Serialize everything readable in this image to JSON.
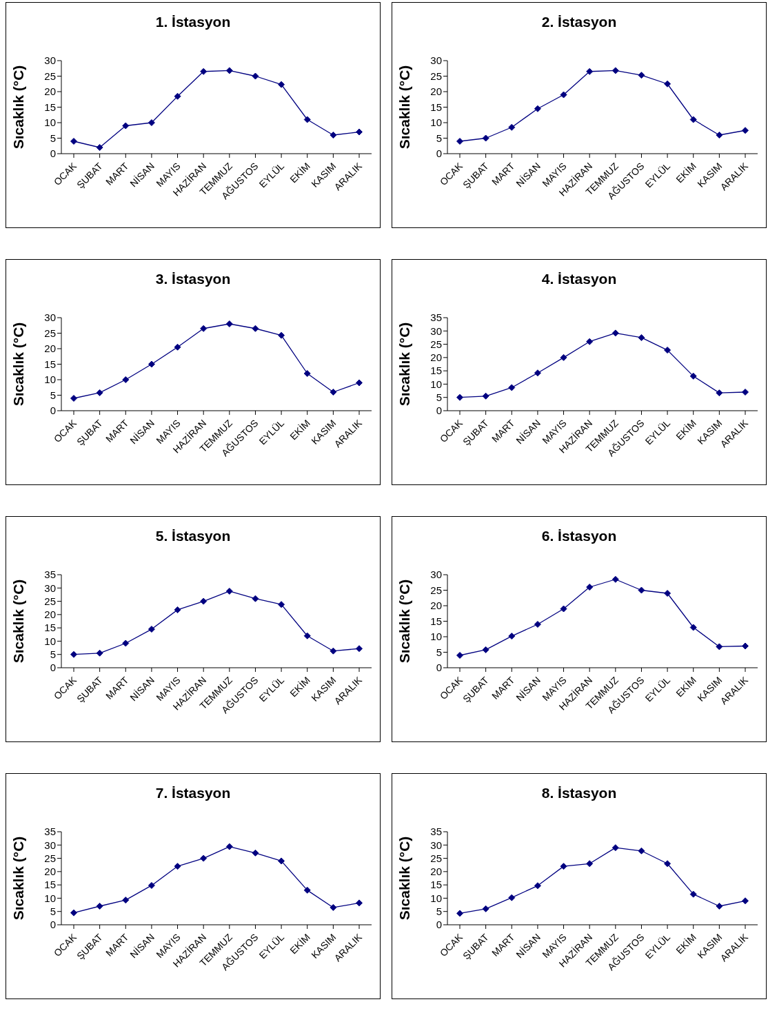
{
  "chart_data": [
    {
      "type": "line",
      "title": "1. İstasyon",
      "ylabel": "Sıcaklık (°C)",
      "categories": [
        "OCAK",
        "ŞUBAT",
        "MART",
        "NİSAN",
        "MAYIS",
        "HAZİRAN",
        "TEMMUZ",
        "AĞUSTOS",
        "EYLÜL",
        "EKİM",
        "KASIM",
        "ARALIK"
      ],
      "series": [
        {
          "color": "#000080",
          "values": [
            4,
            2,
            9,
            10,
            18.5,
            26.5,
            26.8,
            25,
            22.3,
            11,
            6,
            7
          ]
        }
      ],
      "ylim": [
        0,
        30
      ],
      "yticks": [
        0,
        5,
        10,
        15,
        20,
        25,
        30
      ],
      "marker": "diamond",
      "grid": false,
      "legend": false
    },
    {
      "type": "line",
      "title": "2. İstasyon",
      "ylabel": "Sıcaklık (°C)",
      "categories": [
        "OCAK",
        "ŞUBAT",
        "MART",
        "NİSAN",
        "MAYIS",
        "HAZİRAN",
        "TEMMUZ",
        "AĞUSTOS",
        "EYLÜL",
        "EKİM",
        "KASIM",
        "ARALIK"
      ],
      "series": [
        {
          "color": "#000080",
          "values": [
            4,
            5,
            8.5,
            14.5,
            19,
            26.5,
            26.8,
            25.3,
            22.5,
            11,
            6,
            7.5
          ]
        }
      ],
      "ylim": [
        0,
        30
      ],
      "yticks": [
        0,
        5,
        10,
        15,
        20,
        25,
        30
      ],
      "marker": "diamond",
      "grid": false,
      "legend": false
    },
    {
      "type": "line",
      "title": "3. İstasyon",
      "ylabel": "Sıcaklık (°C)",
      "categories": [
        "OCAK",
        "ŞUBAT",
        "MART",
        "NİSAN",
        "MAYIS",
        "HAZİRAN",
        "TEMMUZ",
        "AĞUSTOS",
        "EYLÜL",
        "EKİM",
        "KASIM",
        "ARALIK"
      ],
      "series": [
        {
          "color": "#000080",
          "values": [
            4,
            5.8,
            10,
            15,
            20.5,
            26.5,
            28,
            26.5,
            24.3,
            12,
            6,
            9
          ]
        }
      ],
      "ylim": [
        0,
        30
      ],
      "yticks": [
        0,
        5,
        10,
        15,
        20,
        25,
        30
      ],
      "marker": "diamond",
      "grid": false,
      "legend": false
    },
    {
      "type": "line",
      "title": "4. İstasyon",
      "ylabel": "Sıcaklık (°C)",
      "categories": [
        "OCAK",
        "ŞUBAT",
        "MART",
        "NİSAN",
        "MAYIS",
        "HAZİRAN",
        "TEMMUZ",
        "AĞUSTOS",
        "EYLÜL",
        "EKİM",
        "KASIM",
        "ARALIK"
      ],
      "series": [
        {
          "color": "#000080",
          "values": [
            5,
            5.5,
            8.7,
            14.2,
            20,
            26,
            29.2,
            27.5,
            22.8,
            13,
            6.7,
            7
          ]
        }
      ],
      "ylim": [
        0,
        35
      ],
      "yticks": [
        0,
        5,
        10,
        15,
        20,
        25,
        30,
        35
      ],
      "marker": "diamond",
      "grid": false,
      "legend": false
    },
    {
      "type": "line",
      "title": "5. İstasyon",
      "ylabel": "Sıcaklık (°C)",
      "categories": [
        "OCAK",
        "ŞUBAT",
        "MART",
        "NİSAN",
        "MAYIS",
        "HAZİRAN",
        "TEMMUZ",
        "AĞUSTOS",
        "EYLÜL",
        "EKİM",
        "KASIM",
        "ARALIK"
      ],
      "series": [
        {
          "color": "#000080",
          "values": [
            5,
            5.5,
            9.2,
            14.5,
            21.8,
            25,
            28.8,
            26,
            23.8,
            12,
            6.3,
            7.2
          ]
        }
      ],
      "ylim": [
        0,
        35
      ],
      "yticks": [
        0,
        5,
        10,
        15,
        20,
        25,
        30,
        35
      ],
      "marker": "diamond",
      "grid": false,
      "legend": false
    },
    {
      "type": "line",
      "title": "6. İstasyon",
      "ylabel": "Sıcaklık (°C)",
      "categories": [
        "OCAK",
        "ŞUBAT",
        "MART",
        "NİSAN",
        "MAYIS",
        "HAZİRAN",
        "TEMMUZ",
        "AĞUSTOS",
        "EYLÜL",
        "EKİM",
        "KASIM",
        "ARALIK"
      ],
      "series": [
        {
          "color": "#000080",
          "values": [
            4,
            5.8,
            10.2,
            14,
            19,
            26,
            28.5,
            25,
            24,
            13,
            6.8,
            7
          ]
        }
      ],
      "ylim": [
        0,
        30
      ],
      "yticks": [
        0,
        5,
        10,
        15,
        20,
        25,
        30
      ],
      "marker": "diamond",
      "grid": false,
      "legend": false
    },
    {
      "type": "line",
      "title": "7. İstasyon",
      "ylabel": "Sıcaklık (°C)",
      "categories": [
        "OCAK",
        "ŞUBAT",
        "MART",
        "NİSAN",
        "MAYIS",
        "HAZİRAN",
        "TEMMUZ",
        "AĞUSTOS",
        "EYLÜL",
        "EKİM",
        "KASIM",
        "ARALIK"
      ],
      "series": [
        {
          "color": "#000080",
          "values": [
            4.5,
            7,
            9.3,
            14.8,
            22,
            25,
            29.4,
            27,
            24,
            13,
            6.5,
            8.2
          ]
        }
      ],
      "ylim": [
        0,
        35
      ],
      "yticks": [
        0,
        5,
        10,
        15,
        20,
        25,
        30,
        35
      ],
      "marker": "diamond",
      "grid": false,
      "legend": false
    },
    {
      "type": "line",
      "title": "8. İstasyon",
      "ylabel": "Sıcaklık (°C)",
      "categories": [
        "OCAK",
        "ŞUBAT",
        "MART",
        "NİSAN",
        "MAYIS",
        "HAZİRAN",
        "TEMMUZ",
        "AĞUSTOS",
        "EYLÜL",
        "EKİM",
        "KASIM",
        "ARALIK"
      ],
      "series": [
        {
          "color": "#000080",
          "values": [
            4.3,
            6,
            10.2,
            14.7,
            22,
            23,
            29,
            27.8,
            23,
            11.5,
            7,
            9
          ]
        }
      ],
      "ylim": [
        0,
        35
      ],
      "yticks": [
        0,
        5,
        10,
        15,
        20,
        25,
        30,
        35
      ],
      "marker": "diamond",
      "grid": false,
      "legend": false
    }
  ]
}
